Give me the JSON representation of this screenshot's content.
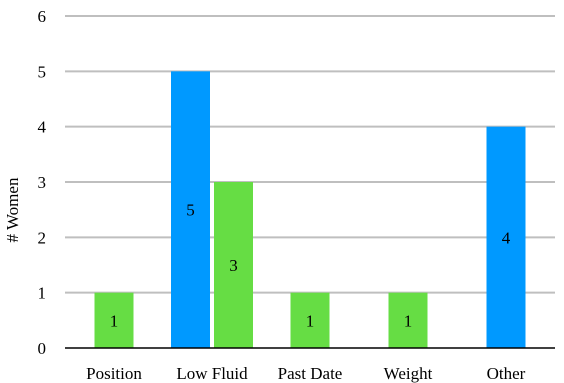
{
  "chart_data": {
    "type": "bar",
    "title": "",
    "xlabel": "",
    "ylabel": "# Women",
    "ylim": [
      0,
      6
    ],
    "yticks": [
      0,
      1,
      2,
      3,
      4,
      5,
      6
    ],
    "grid": true,
    "legend": "none",
    "categories": [
      "Position",
      "Low Fluid",
      "Past Date",
      "Weight",
      "Other"
    ],
    "series": [
      {
        "color": "#0099ff",
        "values": [
          null,
          5,
          null,
          null,
          4
        ]
      },
      {
        "color": "#66dd44",
        "values": [
          1,
          3,
          1,
          1,
          null
        ]
      }
    ],
    "data_labels": true
  }
}
